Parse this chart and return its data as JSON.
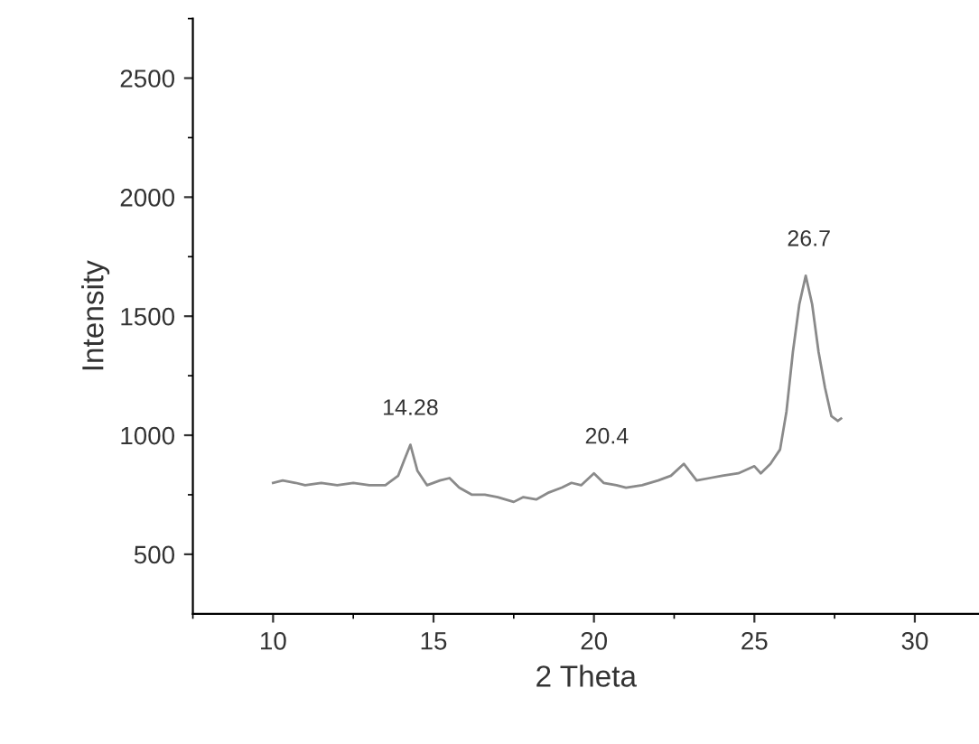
{
  "chart_data": {
    "type": "line",
    "xlabel": "2 Theta",
    "ylabel": "Intensity",
    "x": [
      10,
      10.3,
      10.7,
      11,
      11.5,
      12,
      12.5,
      13,
      13.5,
      13.9,
      14.1,
      14.28,
      14.5,
      14.8,
      15.2,
      15.5,
      15.8,
      16.2,
      16.6,
      17,
      17.5,
      17.8,
      18.2,
      18.6,
      19,
      19.3,
      19.6,
      20,
      20.3,
      20.7,
      21,
      21.5,
      22,
      22.4,
      22.8,
      23.2,
      23.6,
      24,
      24.5,
      25,
      25.2,
      25.5,
      25.8,
      26,
      26.2,
      26.4,
      26.6,
      26.8,
      27,
      27.2,
      27.4,
      27.6,
      27.7
    ],
    "series": [
      {
        "color": "#8a8a8a",
        "values": [
          800,
          810,
          800,
          790,
          800,
          790,
          800,
          790,
          790,
          830,
          900,
          960,
          850,
          790,
          810,
          820,
          780,
          750,
          750,
          740,
          720,
          740,
          730,
          760,
          780,
          800,
          790,
          840,
          800,
          790,
          780,
          790,
          810,
          830,
          880,
          810,
          820,
          830,
          840,
          870,
          840,
          880,
          940,
          1100,
          1350,
          1550,
          1670,
          1550,
          1350,
          1200,
          1080,
          1060,
          1070
        ]
      }
    ],
    "xlim": [
      7.5,
      32
    ],
    "ylim": [
      250,
      2750
    ],
    "xticks": [
      10,
      15,
      20,
      25,
      30
    ],
    "yticks": [
      500,
      1000,
      1500,
      2000,
      2500
    ],
    "annotations": [
      {
        "text": "14.28",
        "x": 14.28,
        "y": 960
      },
      {
        "text": "20.4",
        "x": 20.4,
        "y": 840
      },
      {
        "text": "26.7",
        "x": 26.7,
        "y": 1670
      }
    ],
    "grid": false,
    "marker": "none",
    "line_style": "solid"
  }
}
